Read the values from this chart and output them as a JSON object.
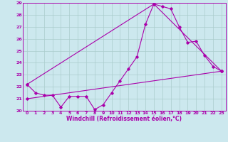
{
  "xlabel": "Windchill (Refroidissement éolien,°C)",
  "xlim": [
    -0.5,
    23.5
  ],
  "ylim": [
    20,
    29
  ],
  "yticks": [
    20,
    21,
    22,
    23,
    24,
    25,
    26,
    27,
    28,
    29
  ],
  "xticks": [
    0,
    1,
    2,
    3,
    4,
    5,
    6,
    7,
    8,
    9,
    10,
    11,
    12,
    13,
    14,
    15,
    16,
    17,
    18,
    19,
    20,
    21,
    22,
    23
  ],
  "bg_color": "#cce8ee",
  "grid_color": "#aacccc",
  "line_color": "#aa00aa",
  "line1_x": [
    0,
    1,
    2,
    3,
    4,
    5,
    6,
    7,
    8,
    9,
    10,
    11,
    12,
    13,
    14,
    15,
    16,
    17,
    18,
    19,
    20,
    21,
    22,
    23
  ],
  "line1_y": [
    22.2,
    21.5,
    21.3,
    21.3,
    20.3,
    21.2,
    21.2,
    21.2,
    20.1,
    20.5,
    21.5,
    22.5,
    23.5,
    24.5,
    27.2,
    28.9,
    28.7,
    28.5,
    27.0,
    25.7,
    25.8,
    24.6,
    23.7,
    23.3
  ],
  "line2_x": [
    0,
    15,
    23
  ],
  "line2_y": [
    22.2,
    28.9,
    23.3
  ],
  "line3_x": [
    0,
    23
  ],
  "line3_y": [
    21.0,
    23.3
  ]
}
